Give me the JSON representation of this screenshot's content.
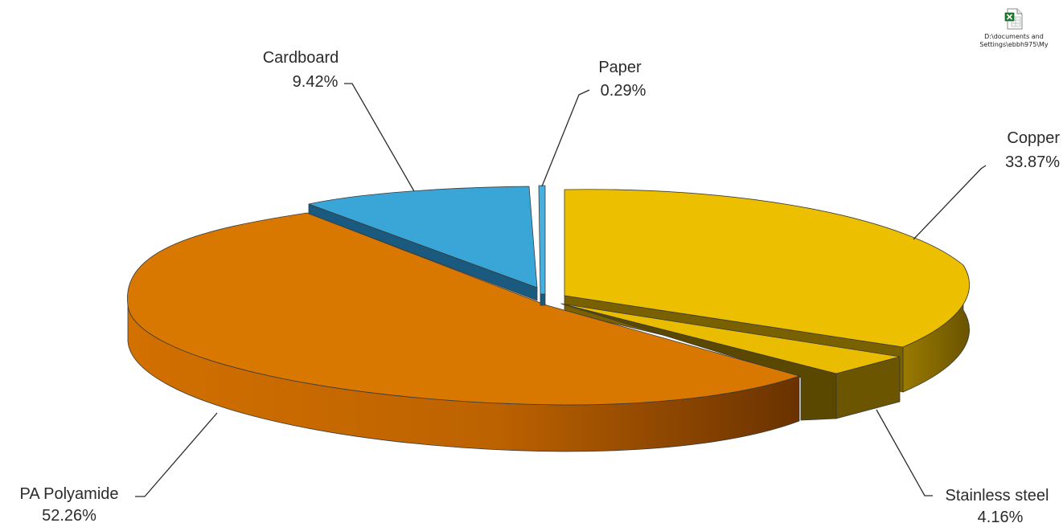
{
  "chart_data": {
    "type": "pie",
    "style": "3d-exploded",
    "title": "",
    "slices": [
      {
        "label": "Copper",
        "value": 33.87,
        "value_label": "33.87%",
        "color": "#ecc000",
        "side": "#7d6400"
      },
      {
        "label": "Stainless steel",
        "value": 4.16,
        "value_label": "4.16%",
        "color": "#e9bc00",
        "side": "#6b5500"
      },
      {
        "label": "PA Polyamide",
        "value": 52.26,
        "value_label": "52.26%",
        "color": "#d97800",
        "side": "#7a3d00"
      },
      {
        "label": "Cardboard",
        "value": 9.42,
        "value_label": "9.42%",
        "color": "#3aa6d8",
        "side": "#1a5a7e"
      },
      {
        "label": "Paper",
        "value": 0.29,
        "value_label": "0.29%",
        "color": "#46b0e0",
        "side": "#1a5a7e"
      }
    ]
  },
  "file_shortcut": {
    "icon": "excel-file-icon",
    "caption_line1": "D:\\documents and",
    "caption_line2": "Settings\\ebbh975\\My"
  }
}
